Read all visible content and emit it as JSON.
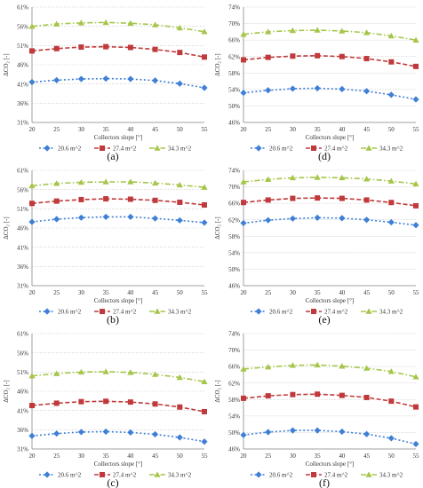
{
  "series_colors": [
    "#3f7fd6",
    "#c0393b",
    "#a5c64a"
  ],
  "chart_data": [
    {
      "panel_label": "(a)",
      "type": "line",
      "xlabel": "Collectors slope [°]",
      "ylabel": "ΔCO₂ [-]",
      "x": [
        20,
        25,
        30,
        35,
        40,
        45,
        50,
        55
      ],
      "xlim": [
        20,
        55
      ],
      "ylim": [
        31,
        61
      ],
      "yticks": [
        "31%",
        "36%",
        "41%",
        "46%",
        "51%",
        "56%",
        "61%"
      ],
      "grid": true,
      "legend_position": "bottom",
      "series": [
        {
          "name": "20.6 m^2",
          "marker": "diamond",
          "values": [
            41.5,
            42.0,
            42.3,
            42.4,
            42.3,
            41.9,
            41.1,
            40.0
          ]
        },
        {
          "name": "27.4 m^2",
          "marker": "square",
          "values": [
            49.6,
            50.2,
            50.6,
            50.7,
            50.5,
            50.0,
            49.2,
            48.0
          ]
        },
        {
          "name": "34.3 m^2",
          "marker": "triangle",
          "values": [
            56.0,
            56.6,
            56.9,
            57.0,
            56.8,
            56.4,
            55.6,
            54.6
          ]
        }
      ]
    },
    {
      "panel_label": "(d)",
      "type": "line",
      "xlabel": "Collectors slope [°]",
      "ylabel": "ΔCO₂ [-]",
      "x": [
        20,
        25,
        30,
        35,
        40,
        45,
        50,
        55
      ],
      "xlim": [
        20,
        55
      ],
      "ylim": [
        46,
        74
      ],
      "yticks": [
        "46%",
        "50%",
        "54%",
        "58%",
        "62%",
        "66%",
        "70%",
        "74%"
      ],
      "grid": true,
      "legend_position": "bottom",
      "series": [
        {
          "name": "20.6 m^2",
          "marker": "diamond",
          "values": [
            53.2,
            53.8,
            54.2,
            54.3,
            54.1,
            53.6,
            52.7,
            51.6
          ]
        },
        {
          "name": "27.4 m^2",
          "marker": "square",
          "values": [
            61.2,
            61.8,
            62.1,
            62.2,
            62.0,
            61.5,
            60.7,
            59.6
          ]
        },
        {
          "name": "34.3 m^2",
          "marker": "triangle",
          "values": [
            67.4,
            68.0,
            68.3,
            68.4,
            68.2,
            67.8,
            67.0,
            66.0
          ]
        }
      ]
    },
    {
      "panel_label": "(b)",
      "type": "line",
      "xlabel": "Collectors slope [°]",
      "ylabel": "ΔCO₂ [-]",
      "x": [
        20,
        25,
        30,
        35,
        40,
        45,
        50,
        55
      ],
      "xlim": [
        20,
        55
      ],
      "ylim": [
        31,
        61
      ],
      "yticks": [
        "31%",
        "36%",
        "41%",
        "46%",
        "51%",
        "56%",
        "61%"
      ],
      "grid": true,
      "legend_position": "bottom",
      "series": [
        {
          "name": "20.6 m^2",
          "marker": "diamond",
          "values": [
            47.6,
            48.3,
            48.7,
            48.9,
            48.9,
            48.5,
            48.0,
            47.4
          ]
        },
        {
          "name": "27.4 m^2",
          "marker": "square",
          "values": [
            52.4,
            53.0,
            53.4,
            53.6,
            53.5,
            53.2,
            52.7,
            52.0
          ]
        },
        {
          "name": "34.3 m^2",
          "marker": "triangle",
          "values": [
            57.0,
            57.6,
            57.9,
            58.0,
            58.0,
            57.7,
            57.2,
            56.6
          ]
        }
      ]
    },
    {
      "panel_label": "(e)",
      "type": "line",
      "xlabel": "Collectors slope [°]",
      "ylabel": "ΔCO₂ [-]",
      "x": [
        20,
        25,
        30,
        35,
        40,
        45,
        50,
        55
      ],
      "xlim": [
        20,
        55
      ],
      "ylim": [
        46,
        74
      ],
      "yticks": [
        "46%",
        "50%",
        "54%",
        "58%",
        "62%",
        "66%",
        "70%",
        "74%"
      ],
      "grid": true,
      "legend_position": "bottom",
      "series": [
        {
          "name": "20.6 m^2",
          "marker": "diamond",
          "values": [
            61.2,
            61.9,
            62.3,
            62.5,
            62.4,
            62.0,
            61.4,
            60.7
          ]
        },
        {
          "name": "27.4 m^2",
          "marker": "square",
          "values": [
            66.2,
            66.8,
            67.2,
            67.3,
            67.2,
            66.8,
            66.2,
            65.4
          ]
        },
        {
          "name": "34.3 m^2",
          "marker": "triangle",
          "values": [
            71.2,
            71.8,
            72.2,
            72.3,
            72.2,
            71.9,
            71.4,
            70.7
          ]
        }
      ]
    },
    {
      "panel_label": "(c)",
      "type": "line",
      "xlabel": "Collectors slope [°]",
      "ylabel": "ΔCO₂ [-]",
      "x": [
        20,
        25,
        30,
        35,
        40,
        45,
        50,
        55
      ],
      "xlim": [
        20,
        55
      ],
      "ylim": [
        31,
        61
      ],
      "yticks": [
        "31%",
        "36%",
        "41%",
        "46%",
        "51%",
        "56%",
        "61%"
      ],
      "grid": true,
      "legend_position": "bottom",
      "series": [
        {
          "name": "20.6 m^2",
          "marker": "diamond",
          "values": [
            34.4,
            35.0,
            35.4,
            35.5,
            35.3,
            34.8,
            34.0,
            32.9
          ]
        },
        {
          "name": "27.4 m^2",
          "marker": "square",
          "values": [
            42.3,
            42.9,
            43.3,
            43.4,
            43.2,
            42.7,
            41.9,
            40.7
          ]
        },
        {
          "name": "34.3 m^2",
          "marker": "triangle",
          "values": [
            50.0,
            50.6,
            51.0,
            51.1,
            50.9,
            50.4,
            49.6,
            48.5
          ]
        }
      ]
    },
    {
      "panel_label": "(f)",
      "type": "line",
      "xlabel": "Collectors slope [°]",
      "ylabel": "ΔCO₂ [-]",
      "x": [
        20,
        25,
        30,
        35,
        40,
        45,
        50,
        55
      ],
      "xlim": [
        20,
        55
      ],
      "ylim": [
        46,
        74
      ],
      "yticks": [
        "46%",
        "50%",
        "54%",
        "58%",
        "62%",
        "66%",
        "70%",
        "74%"
      ],
      "grid": true,
      "legend_position": "bottom",
      "series": [
        {
          "name": "20.6 m^2",
          "marker": "diamond",
          "values": [
            49.4,
            50.1,
            50.5,
            50.5,
            50.2,
            49.6,
            48.6,
            47.2
          ]
        },
        {
          "name": "27.4 m^2",
          "marker": "square",
          "values": [
            58.3,
            58.9,
            59.2,
            59.3,
            59.0,
            58.5,
            57.6,
            56.2
          ]
        },
        {
          "name": "34.3 m^2",
          "marker": "triangle",
          "values": [
            65.4,
            65.9,
            66.3,
            66.4,
            66.1,
            65.6,
            64.8,
            63.5
          ]
        }
      ]
    }
  ]
}
